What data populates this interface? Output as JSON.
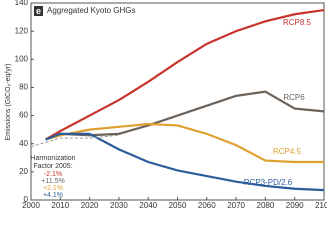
{
  "chart_data": {
    "type": "line",
    "panel_label": "e",
    "title": "Aggregated Kyoto GHGs",
    "y_label": "Emissions (GtCO₂-eq/yr)",
    "x": [
      2000,
      2005,
      2010,
      2020,
      2030,
      2040,
      2050,
      2060,
      2070,
      2080,
      2090,
      2100
    ],
    "xlim": [
      2000,
      2100
    ],
    "xticks": [
      2000,
      2010,
      2020,
      2030,
      2040,
      2050,
      2060,
      2070,
      2080,
      2090,
      2100
    ],
    "ylim": [
      0,
      140
    ],
    "yticks": [
      0,
      20,
      40,
      60,
      80,
      100,
      120,
      140
    ],
    "series": [
      {
        "name": "RCP8.5",
        "color": "#c8342b",
        "values": [
          null,
          43,
          49,
          60,
          71,
          84,
          98,
          111,
          120,
          127,
          132,
          135
        ]
      },
      {
        "name": "RCP6",
        "color": "#6b625a",
        "values": [
          null,
          43,
          47,
          46,
          47,
          53,
          60,
          67,
          74,
          77,
          65,
          63
        ]
      },
      {
        "name": "RCP4.5",
        "color": "#e0a030",
        "values": [
          null,
          43,
          46,
          50,
          52,
          54,
          53,
          47,
          39,
          28,
          27,
          27
        ]
      },
      {
        "name": "RCP3-PD/2.6",
        "color": "#2a5d9a",
        "values": [
          null,
          43,
          47,
          47,
          36,
          27,
          21,
          17,
          13,
          10,
          8,
          7
        ]
      },
      {
        "color": "#999999",
        "dashed": true,
        "values": [
          38,
          41,
          44,
          44,
          46,
          null,
          null,
          null,
          null,
          null,
          null,
          null
        ]
      }
    ],
    "annotation": {
      "title": "Harmonization Factor 2005:",
      "items": [
        {
          "text": "-2.1%",
          "color": "#c8342b"
        },
        {
          "text": "+11.5%",
          "color": "#6b625a"
        },
        {
          "text": "+2.1%",
          "color": "#e0a030"
        },
        {
          "text": "+4.1%",
          "color": "#2a5d9a"
        }
      ]
    }
  }
}
